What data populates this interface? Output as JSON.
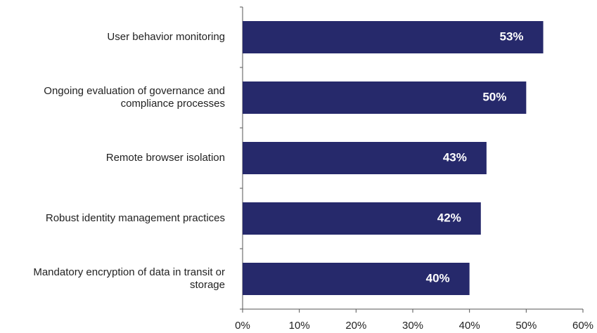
{
  "chart_data": {
    "type": "bar",
    "orientation": "horizontal",
    "categories": [
      "User behavior monitoring",
      "Ongoing evaluation of governance and compliance processes",
      "Remote browser isolation",
      "Robust identity management practices",
      "Mandatory encryption of data in transit or storage"
    ],
    "values": [
      53,
      50,
      43,
      42,
      40
    ],
    "value_labels": [
      "53%",
      "50%",
      "43%",
      "42%",
      "40%"
    ],
    "color": "#26296b",
    "xlim": [
      0,
      60
    ],
    "xticks": [
      {
        "value": 0,
        "label": "0%"
      },
      {
        "value": 10,
        "label": "10%"
      },
      {
        "value": 20,
        "label": "20%"
      },
      {
        "value": 30,
        "label": "30%"
      },
      {
        "value": 40,
        "label": "40%"
      },
      {
        "value": 50,
        "label": "50%"
      },
      {
        "value": 60,
        "label": "60%"
      }
    ],
    "grid": false
  }
}
